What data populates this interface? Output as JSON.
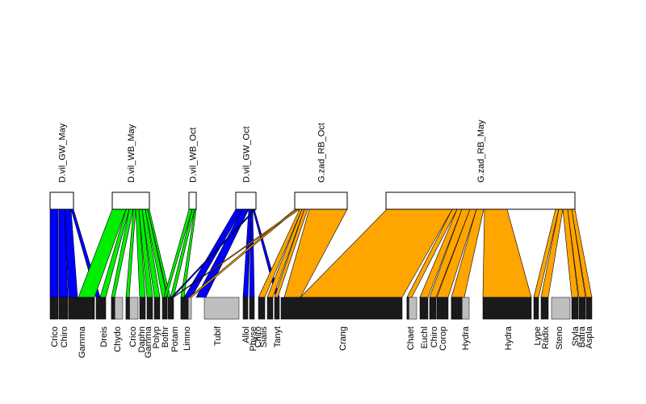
{
  "diagram": {
    "type": "bipartite food web",
    "upper_nodes": [
      "D.vil_GW_May",
      "D.vil_WB_May",
      "D.vil_WB_Oct",
      "D.vil_GW_Oct",
      "G.zad_RB_Oct",
      "G.zad_RB_May"
    ],
    "lower_nodes": [
      "Crico",
      "Chiro",
      "Gamma",
      "Dreis",
      "Chydo",
      "Crico",
      "Daphn",
      "Gamma",
      "Polyp",
      "Bothr",
      "Potam",
      "Limno",
      "Tubif",
      "Allol",
      "Physe",
      "Chiro",
      "Sialis",
      "Tanyt",
      "Crang",
      "Chaet",
      "Euchl",
      "Chiro",
      "Corop",
      "Hydra",
      "Hydra",
      "Lype",
      "Radix",
      "Steno",
      "Styla",
      "Batra",
      "Aspla"
    ],
    "colors": {
      "D.vil_GW_May": "#0000ff",
      "D.vil_WB_May": "#00ee00",
      "D.vil_WB_Oct": "#00ee00",
      "D.vil_GW_Oct": "#0000ff",
      "G.zad_RB_Oct": "#ffa500",
      "G.zad_RB_May": "#ffa500",
      "lower_box": "#1a1a1a",
      "unlinked_box": "#bebebe",
      "upper_box": "#ffffff"
    }
  }
}
